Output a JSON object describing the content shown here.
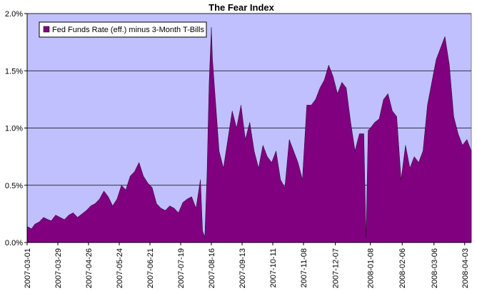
{
  "chart_data": {
    "type": "area",
    "title": "The Fear Index",
    "xlabel": "",
    "ylabel": "",
    "ylim": [
      0,
      2.0
    ],
    "y_ticks": [
      "0.0%",
      "0.5%",
      "1.0%",
      "1.5%",
      "2.0%"
    ],
    "x_ticks": [
      "2007-03-01",
      "2007-03-29",
      "2007-04-26",
      "2007-05-24",
      "2007-06-21",
      "2007-07-19",
      "2007-08-16",
      "2007-09-13",
      "2007-10-11",
      "2007-11-08",
      "2007-12-07",
      "2008-01-08",
      "2008-02-06",
      "2008-03-06",
      "2008-04-03"
    ],
    "grid": "horizontal",
    "legend_position": "top-left",
    "colors": {
      "fill": "#800080",
      "plot_bg": "#c0c0ff",
      "gridline": "#000000"
    },
    "series": [
      {
        "name": "Fed Funds Rate (eff.) minus 3-Month T-Bills",
        "x": [
          "2007-03-01",
          "2007-03-05",
          "2007-03-08",
          "2007-03-12",
          "2007-03-16",
          "2007-03-20",
          "2007-03-23",
          "2007-03-27",
          "2007-03-31",
          "2007-04-04",
          "2007-04-08",
          "2007-04-12",
          "2007-04-16",
          "2007-04-20",
          "2007-04-24",
          "2007-04-28",
          "2007-05-02",
          "2007-05-06",
          "2007-05-10",
          "2007-05-14",
          "2007-05-18",
          "2007-05-22",
          "2007-05-26",
          "2007-05-30",
          "2007-06-03",
          "2007-06-07",
          "2007-06-11",
          "2007-06-15",
          "2007-06-19",
          "2007-06-23",
          "2007-06-27",
          "2007-07-01",
          "2007-07-05",
          "2007-07-09",
          "2007-07-13",
          "2007-07-17",
          "2007-07-21",
          "2007-07-25",
          "2007-07-29",
          "2007-08-02",
          "2007-08-06",
          "2007-08-08",
          "2007-08-10",
          "2007-08-12",
          "2007-08-14",
          "2007-08-16",
          "2007-08-17",
          "2007-08-20",
          "2007-08-23",
          "2007-08-27",
          "2007-08-31",
          "2007-09-04",
          "2007-09-08",
          "2007-09-12",
          "2007-09-16",
          "2007-09-20",
          "2007-09-24",
          "2007-09-28",
          "2007-10-02",
          "2007-10-06",
          "2007-10-10",
          "2007-10-14",
          "2007-10-18",
          "2007-10-22",
          "2007-10-26",
          "2007-10-30",
          "2007-11-03",
          "2007-11-07",
          "2007-11-11",
          "2007-11-15",
          "2007-11-19",
          "2007-11-23",
          "2007-11-27",
          "2007-12-01",
          "2007-12-05",
          "2007-12-09",
          "2007-12-13",
          "2007-12-17",
          "2007-12-21",
          "2007-12-25",
          "2007-12-29",
          "2008-01-02",
          "2008-01-04",
          "2008-01-06",
          "2008-01-08",
          "2008-01-12",
          "2008-01-16",
          "2008-01-20",
          "2008-01-24",
          "2008-01-28",
          "2008-02-01",
          "2008-02-05",
          "2008-02-09",
          "2008-02-13",
          "2008-02-17",
          "2008-02-21",
          "2008-02-25",
          "2008-02-29",
          "2008-03-04",
          "2008-03-08",
          "2008-03-12",
          "2008-03-16",
          "2008-03-20",
          "2008-03-24",
          "2008-03-28",
          "2008-04-01",
          "2008-04-05",
          "2008-04-09"
        ],
        "values": [
          0.14,
          0.12,
          0.16,
          0.18,
          0.22,
          0.2,
          0.19,
          0.24,
          0.22,
          0.2,
          0.24,
          0.26,
          0.22,
          0.25,
          0.28,
          0.32,
          0.34,
          0.38,
          0.45,
          0.4,
          0.32,
          0.38,
          0.5,
          0.46,
          0.58,
          0.62,
          0.7,
          0.58,
          0.52,
          0.48,
          0.34,
          0.3,
          0.28,
          0.32,
          0.3,
          0.26,
          0.35,
          0.38,
          0.4,
          0.3,
          0.55,
          0.1,
          0.05,
          0.6,
          1.4,
          1.88,
          1.6,
          1.2,
          0.8,
          0.65,
          0.9,
          1.15,
          1.0,
          1.2,
          0.9,
          1.05,
          0.8,
          0.65,
          0.85,
          0.75,
          0.7,
          0.8,
          0.55,
          0.48,
          0.9,
          0.8,
          0.7,
          0.55,
          1.2,
          1.2,
          1.25,
          1.35,
          1.42,
          1.55,
          1.45,
          1.3,
          1.4,
          1.35,
          1.05,
          0.8,
          0.95,
          0.95,
          0.05,
          0.98,
          1.0,
          1.05,
          1.08,
          1.25,
          1.3,
          1.15,
          1.1,
          0.55,
          0.85,
          0.65,
          0.75,
          0.7,
          0.8,
          1.2,
          1.4,
          1.6,
          1.7,
          1.8,
          1.55,
          1.1,
          0.95,
          0.85,
          0.9,
          0.8
        ]
      }
    ]
  }
}
